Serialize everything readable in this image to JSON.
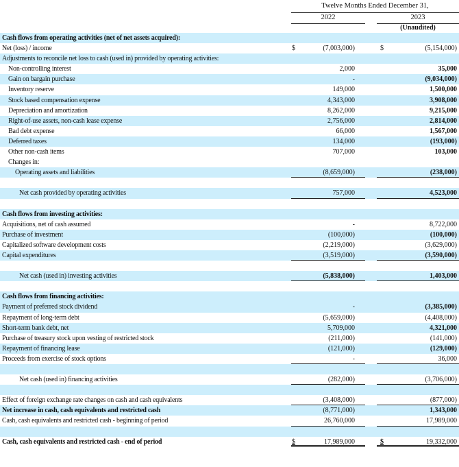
{
  "header": {
    "period": "Twelve Months Ended December 31,",
    "col1_year": "2022",
    "col2_year": "2023",
    "col2_note": "(Unaudited)"
  },
  "colors": {
    "row_shade": "#cdeefc"
  },
  "rows": [
    {
      "label": "Cash flows from operating activities (net of net assets acquired):",
      "bold": true,
      "shade": true
    },
    {
      "label": "Net (loss) / income",
      "cur1": "$",
      "v1": "(7,003,000)",
      "cur2": "$",
      "v2": "(5,154,000)"
    },
    {
      "label": "Adjustments to reconcile net loss to cash (used in) provided by operating activities:",
      "shade": true
    },
    {
      "label": "Non-controlling interest",
      "indent": 1,
      "v1": "2,000",
      "v2": "35,000",
      "b2": true
    },
    {
      "label": "Gain on bargain purchase",
      "indent": 1,
      "v1": "-",
      "v2": "(9,034,000)",
      "b2": true,
      "shade": true
    },
    {
      "label": "Inventory reserve",
      "indent": 1,
      "v1": "149,000",
      "v2": "1,500,000",
      "b2": true
    },
    {
      "label": "Stock based compensation expense",
      "indent": 1,
      "v1": "4,343,000",
      "v2": "3,908,000",
      "b2": true,
      "shade": true
    },
    {
      "label": "Depreciation and amortization",
      "indent": 1,
      "v1": "8,262,000",
      "v2": "9,215,000",
      "b2": true
    },
    {
      "label": "Right-of-use assets, non-cash lease expense",
      "indent": 1,
      "v1": "2,756,000",
      "v2": "2,814,000",
      "b2": true,
      "shade": true
    },
    {
      "label": "Bad debt expense",
      "indent": 1,
      "v1": "66,000",
      "v2": "1,567,000",
      "b2": true
    },
    {
      "label": "Deferred taxes",
      "indent": 1,
      "v1": "134,000",
      "v2": "(193,000)",
      "b2": true,
      "shade": true
    },
    {
      "label": "Other non-cash items",
      "indent": 1,
      "v1": "707,000",
      "v2": "103,000",
      "b2": true
    },
    {
      "label": "Changes in:",
      "indent": 1
    },
    {
      "label": "Operating assets and liabilities",
      "indent": 2,
      "v1": "(8,659,000)",
      "v2": "(238,000)",
      "b2": true,
      "shade": true,
      "ul": true
    },
    {
      "label": ""
    },
    {
      "label": "Net cash provided by operating activities",
      "indent": 3,
      "v1": "757,000",
      "v2": "4,523,000",
      "b2": true,
      "shade": true,
      "ul": true
    },
    {
      "label": ""
    },
    {
      "label": "Cash flows from investing activities:",
      "bold": true,
      "shade": true
    },
    {
      "label": "Acquisitions, net of cash assumed",
      "v1": "-",
      "v2": "8,722,000"
    },
    {
      "label": "Purchase of investment",
      "v1": "(100,000)",
      "v2": "(100,000)",
      "b2": true,
      "shade": true
    },
    {
      "label": "Capitalized software development costs",
      "v1": "(2,219,000)",
      "v2": "(3,629,000)"
    },
    {
      "label": "Capital expenditures",
      "v1": "(3,519,000)",
      "v2": "(3,590,000)",
      "b2": true,
      "shade": true,
      "ul": true
    },
    {
      "label": ""
    },
    {
      "label": "Net cash (used in) investing activities",
      "indent": 3,
      "v1": "(5,838,000)",
      "v2": "1,403,000",
      "b1": true,
      "b2": true,
      "shade": true,
      "ul": true
    },
    {
      "label": ""
    },
    {
      "label": "Cash flows from financing activities:",
      "bold": true,
      "shade": true
    },
    {
      "label": "Payment of preferred stock dividend",
      "v1": "-",
      "v2": "(3,385,000)",
      "b2": true,
      "shade": true
    },
    {
      "label": "Repayment of long-term debt",
      "v1": "(5,659,000)",
      "v2": "(4,408,000)"
    },
    {
      "label": "Short-term bank debt, net",
      "v1": "5,709,000",
      "v2": "4,321,000",
      "b2": true,
      "shade": true
    },
    {
      "label": "Purchase of treasury stock upon vesting of restricted stock",
      "v1": "(211,000)",
      "v2": "(141,000)"
    },
    {
      "label": "Repayment of financing lease",
      "v1": "(121,000)",
      "v2": "(129,000)",
      "b2": true,
      "shade": true
    },
    {
      "label": "Proceeds from exercise of stock options",
      "v1": "-",
      "v2": "36,000",
      "ul": true
    },
    {
      "label": "",
      "shade": true
    },
    {
      "label": "Net cash (used in) financing activities",
      "indent": 3,
      "v1": "(282,000)",
      "v2": "(3,706,000)",
      "ul": true
    },
    {
      "label": "",
      "shade": true
    },
    {
      "label": "Effect of foreign exchange rate changes on cash and cash equivalents",
      "v1": "(3,408,000)",
      "v2": "(877,000)",
      "ul": true
    },
    {
      "label": "Net increase in cash, cash equivalents and restricted cash",
      "bold": true,
      "v1": "(8,771,000)",
      "v2": "1,343,000",
      "b2": true,
      "shade": true
    },
    {
      "label": "Cash, cash equivalents and restricted cash - beginning of period",
      "v1": "26,760,000",
      "v2": "17,989,000",
      "ul": true
    },
    {
      "label": "",
      "shade": true
    },
    {
      "label": "Cash, cash equivalents and restricted cash - end of period",
      "bold": true,
      "cur1": "$",
      "v1": "17,989,000",
      "cur2": "$",
      "v2": "19,332,000",
      "dul": true
    }
  ]
}
